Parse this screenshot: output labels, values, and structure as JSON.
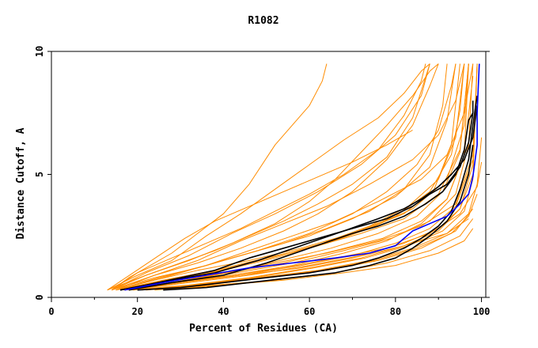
{
  "chart_data": {
    "type": "line",
    "title": "R1082",
    "xlabel": "Percent of Residues (CA)",
    "ylabel": "Distance Cutoff, A",
    "xlim": [
      0,
      101
    ],
    "ylim": [
      0,
      10
    ],
    "x_ticks": [
      0,
      20,
      40,
      60,
      80,
      100
    ],
    "y_ticks": [
      0,
      5,
      10
    ],
    "grid": false,
    "legend": "none",
    "colors": {
      "orange": "#ff8c00",
      "black": "#000000",
      "blue": "#0000ff"
    },
    "series": [
      {
        "color": "orange",
        "x": [
          14,
          18,
          22,
          28,
          34,
          40,
          46,
          52,
          56,
          60,
          63,
          64
        ],
        "y": [
          0.3,
          0.8,
          1.2,
          1.8,
          2.6,
          3.4,
          4.6,
          6.2,
          7.0,
          7.8,
          8.8,
          9.5
        ]
      },
      {
        "color": "orange",
        "x": [
          13,
          20,
          28,
          36,
          44,
          52,
          60,
          68,
          76,
          82,
          86,
          88
        ],
        "y": [
          0.3,
          0.9,
          1.5,
          2.5,
          3.4,
          4.4,
          5.4,
          6.4,
          7.3,
          8.3,
          9.2,
          9.5
        ]
      },
      {
        "color": "orange",
        "x": [
          14,
          22,
          32,
          42,
          52,
          62,
          72,
          80,
          86,
          88
        ],
        "y": [
          0.3,
          1.0,
          1.7,
          2.6,
          3.4,
          4.3,
          5.4,
          6.6,
          8.2,
          9.5
        ]
      },
      {
        "color": "orange",
        "x": [
          15,
          24,
          34,
          44,
          54,
          64,
          74,
          84,
          90,
          94,
          96
        ],
        "y": [
          0.3,
          0.9,
          1.5,
          2.3,
          3.0,
          3.7,
          4.6,
          5.6,
          6.6,
          8.0,
          9.5
        ]
      },
      {
        "color": "orange",
        "x": [
          15,
          26,
          36,
          46,
          56,
          66,
          76,
          86,
          92,
          96,
          98
        ],
        "y": [
          0.3,
          0.8,
          1.3,
          1.9,
          2.5,
          3.1,
          3.9,
          4.8,
          5.8,
          7.5,
          9.5
        ]
      },
      {
        "color": "orange",
        "x": [
          16,
          26,
          38,
          50,
          62,
          72,
          82,
          90,
          95,
          97
        ],
        "y": [
          0.3,
          0.7,
          1.1,
          1.6,
          2.1,
          2.6,
          3.2,
          4.2,
          6.0,
          9.5
        ]
      },
      {
        "color": "orange",
        "x": [
          16,
          28,
          40,
          52,
          64,
          76,
          86,
          94,
          98,
          99
        ],
        "y": [
          0.3,
          0.6,
          1.0,
          1.4,
          1.8,
          2.3,
          2.9,
          3.8,
          5.8,
          9.5
        ]
      },
      {
        "color": "orange",
        "x": [
          17,
          30,
          42,
          54,
          66,
          78,
          88,
          95,
          99,
          100
        ],
        "y": [
          0.3,
          0.6,
          0.9,
          1.2,
          1.6,
          2.0,
          2.6,
          3.4,
          4.5,
          5.5
        ]
      },
      {
        "color": "orange",
        "x": [
          18,
          30,
          44,
          58,
          70,
          82,
          92,
          97
        ],
        "y": [
          0.3,
          0.6,
          0.9,
          1.2,
          1.6,
          2.1,
          2.6,
          3.2
        ]
      },
      {
        "color": "orange",
        "x": [
          14,
          24,
          34,
          44,
          54,
          62,
          70,
          78,
          84,
          88,
          90
        ],
        "y": [
          0.3,
          0.9,
          1.4,
          2.0,
          2.7,
          3.4,
          4.3,
          5.6,
          7.0,
          8.6,
          9.5
        ]
      },
      {
        "color": "orange",
        "x": [
          15,
          25,
          36,
          48,
          60,
          70,
          80,
          88,
          92,
          94
        ],
        "y": [
          0.3,
          0.8,
          1.3,
          1.9,
          2.5,
          3.2,
          4.1,
          5.3,
          7.2,
          9.5
        ]
      },
      {
        "color": "orange",
        "x": [
          16,
          28,
          40,
          52,
          64,
          74,
          84,
          92,
          96,
          97
        ],
        "y": [
          0.3,
          0.7,
          1.1,
          1.6,
          2.2,
          2.8,
          3.6,
          4.8,
          7.0,
          9.5
        ]
      },
      {
        "color": "orange",
        "x": [
          17,
          30,
          43,
          56,
          68,
          79,
          88,
          94,
          97,
          98
        ],
        "y": [
          0.3,
          0.6,
          1.0,
          1.4,
          1.9,
          2.4,
          3.1,
          4.2,
          6.2,
          9.5
        ]
      },
      {
        "color": "orange",
        "x": [
          18,
          32,
          46,
          60,
          72,
          82,
          90,
          95,
          98,
          99
        ],
        "y": [
          0.3,
          0.6,
          0.9,
          1.3,
          1.7,
          2.2,
          2.8,
          3.6,
          5.4,
          9.5
        ]
      },
      {
        "color": "orange",
        "x": [
          20,
          34,
          48,
          62,
          74,
          84,
          92,
          97,
          99,
          100
        ],
        "y": [
          0.3,
          0.5,
          0.8,
          1.1,
          1.5,
          2.0,
          2.6,
          3.4,
          4.6,
          6.5
        ]
      },
      {
        "color": "orange",
        "x": [
          22,
          36,
          50,
          64,
          76,
          86,
          94,
          98
        ],
        "y": [
          0.3,
          0.5,
          0.8,
          1.1,
          1.5,
          2.0,
          2.7,
          3.6
        ]
      },
      {
        "color": "orange",
        "x": [
          13,
          22,
          30,
          38,
          46,
          54,
          62,
          70,
          78,
          84,
          88
        ],
        "y": [
          0.3,
          0.9,
          1.4,
          1.9,
          2.5,
          3.1,
          3.8,
          4.6,
          5.7,
          7.3,
          9.5
        ]
      },
      {
        "color": "orange",
        "x": [
          14,
          24,
          34,
          44,
          54,
          64,
          74,
          82,
          88,
          91,
          92
        ],
        "y": [
          0.3,
          0.8,
          1.2,
          1.7,
          2.2,
          2.8,
          3.5,
          4.4,
          5.8,
          7.8,
          9.5
        ]
      },
      {
        "color": "orange",
        "x": [
          15,
          26,
          38,
          50,
          62,
          72,
          82,
          89,
          93,
          95
        ],
        "y": [
          0.3,
          0.7,
          1.1,
          1.6,
          2.1,
          2.7,
          3.4,
          4.4,
          6.2,
          9.5
        ]
      },
      {
        "color": "orange",
        "x": [
          16,
          28,
          41,
          54,
          66,
          77,
          86,
          92,
          96,
          97
        ],
        "y": [
          0.3,
          0.6,
          1.0,
          1.4,
          1.9,
          2.4,
          3.1,
          4.0,
          5.8,
          9.5
        ]
      },
      {
        "color": "orange",
        "x": [
          17,
          30,
          44,
          58,
          70,
          80,
          88,
          94,
          98
        ],
        "y": [
          0.3,
          0.6,
          0.9,
          1.3,
          1.7,
          2.2,
          2.8,
          3.7,
          5.6
        ]
      },
      {
        "color": "orange",
        "x": [
          19,
          33,
          47,
          61,
          73,
          83,
          91,
          96,
          98,
          99
        ],
        "y": [
          0.3,
          0.5,
          0.8,
          1.2,
          1.6,
          2.1,
          2.7,
          3.5,
          4.8,
          9.5
        ]
      },
      {
        "color": "orange",
        "x": [
          14,
          20,
          28,
          36,
          44,
          52,
          60,
          68,
          76,
          82,
          86,
          87
        ],
        "y": [
          0.3,
          1.0,
          1.6,
          2.2,
          2.8,
          3.5,
          4.2,
          5.0,
          6.0,
          7.4,
          8.8,
          9.5
        ]
      },
      {
        "color": "orange",
        "x": [
          15,
          24,
          34,
          46,
          58,
          70,
          80,
          88,
          93,
          95,
          96
        ],
        "y": [
          0.3,
          0.7,
          1.1,
          1.5,
          2.0,
          2.6,
          3.3,
          4.3,
          5.8,
          7.6,
          9.5
        ]
      },
      {
        "color": "orange",
        "x": [
          16,
          28,
          42,
          56,
          68,
          78,
          86,
          92,
          96,
          98
        ],
        "y": [
          0.3,
          0.6,
          0.9,
          1.3,
          1.8,
          2.3,
          3.0,
          4.0,
          5.8,
          9.0
        ]
      },
      {
        "color": "orange",
        "x": [
          18,
          32,
          46,
          60,
          72,
          82,
          90,
          95,
          98
        ],
        "y": [
          0.3,
          0.5,
          0.8,
          1.2,
          1.6,
          2.1,
          2.7,
          3.6,
          5.0
        ]
      },
      {
        "color": "orange",
        "x": [
          21,
          35,
          49,
          63,
          75,
          85,
          93,
          97,
          99
        ],
        "y": [
          0.3,
          0.5,
          0.8,
          1.1,
          1.5,
          2.0,
          2.6,
          3.3,
          4.2
        ]
      },
      {
        "color": "orange",
        "x": [
          24,
          38,
          52,
          66,
          78,
          88,
          95,
          98
        ],
        "y": [
          0.3,
          0.5,
          0.7,
          1.0,
          1.4,
          1.9,
          2.5,
          3.2
        ]
      },
      {
        "color": "orange",
        "x": [
          26,
          40,
          54,
          68,
          80,
          90,
          96,
          98
        ],
        "y": [
          0.3,
          0.5,
          0.7,
          1.0,
          1.3,
          1.8,
          2.3,
          2.8
        ]
      },
      {
        "color": "orange",
        "x": [
          14,
          22,
          32,
          42,
          52,
          60,
          66,
          72,
          78,
          84,
          88,
          90
        ],
        "y": [
          0.3,
          0.9,
          1.5,
          2.2,
          3.0,
          3.9,
          4.8,
          5.9,
          7.0,
          8.2,
          9.2,
          9.5
        ]
      },
      {
        "color": "orange",
        "x": [
          15,
          25,
          36,
          48,
          60,
          70,
          78,
          85,
          90,
          93,
          94
        ],
        "y": [
          0.3,
          0.8,
          1.3,
          1.9,
          2.6,
          3.4,
          4.3,
          5.4,
          6.8,
          8.6,
          9.5
        ]
      },
      {
        "color": "orange",
        "x": [
          16,
          27,
          39,
          51,
          63,
          74,
          83,
          90,
          94,
          96
        ],
        "y": [
          0.3,
          0.7,
          1.1,
          1.6,
          2.2,
          2.9,
          3.7,
          4.8,
          6.5,
          9.5
        ]
      },
      {
        "color": "orange",
        "x": [
          17,
          29,
          41,
          53,
          65,
          76,
          85,
          91,
          95,
          97
        ],
        "y": [
          0.3,
          0.6,
          1.0,
          1.5,
          2.0,
          2.6,
          3.3,
          4.3,
          5.9,
          9.5
        ]
      },
      {
        "color": "orange",
        "x": [
          13,
          19,
          25,
          31,
          38,
          46,
          54,
          62,
          70,
          78,
          84
        ],
        "y": [
          0.3,
          1.0,
          1.7,
          2.4,
          3.1,
          3.7,
          4.3,
          4.9,
          5.5,
          6.2,
          6.8
        ]
      },
      {
        "color": "black",
        "x": [
          16,
          22,
          30,
          38,
          46,
          54,
          62,
          70,
          78,
          84,
          88,
          92,
          95,
          97,
          98,
          98
        ],
        "y": [
          0.3,
          0.5,
          0.8,
          1.1,
          1.6,
          2.0,
          2.4,
          2.8,
          3.2,
          3.7,
          4.2,
          4.6,
          5.3,
          6.3,
          7.5,
          8.0
        ]
      },
      {
        "color": "black",
        "x": [
          18,
          28,
          40,
          50,
          60,
          70,
          76,
          82,
          87,
          91,
          94,
          96,
          97,
          98
        ],
        "y": [
          0.3,
          0.6,
          0.9,
          1.4,
          2.0,
          2.6,
          2.9,
          3.3,
          3.8,
          4.3,
          5.0,
          6.0,
          7.2,
          7.5
        ]
      },
      {
        "color": "black",
        "x": [
          20,
          30,
          40,
          50,
          60,
          70,
          76,
          82,
          86,
          90,
          93,
          95,
          97,
          98,
          99
        ],
        "y": [
          0.3,
          0.4,
          0.6,
          0.8,
          1.0,
          1.3,
          1.6,
          2.0,
          2.4,
          2.9,
          3.5,
          4.4,
          5.6,
          7.0,
          8.2
        ]
      },
      {
        "color": "black",
        "x": [
          26,
          36,
          46,
          56,
          66,
          74,
          80,
          84,
          88,
          92,
          95,
          97,
          98
        ],
        "y": [
          0.3,
          0.4,
          0.6,
          0.8,
          1.0,
          1.3,
          1.6,
          2.0,
          2.5,
          3.1,
          3.9,
          5.0,
          6.2
        ]
      },
      {
        "color": "black",
        "x": [
          16,
          28,
          38,
          48,
          58,
          68,
          76,
          82,
          86,
          90,
          93,
          96,
          98,
          99
        ],
        "y": [
          0.3,
          0.7,
          1.0,
          1.5,
          2.1,
          2.7,
          3.2,
          3.6,
          4.0,
          4.5,
          5.0,
          5.6,
          6.5,
          7.8
        ]
      },
      {
        "color": "blue",
        "x": [
          17,
          26,
          36,
          46,
          56,
          66,
          74,
          80,
          84,
          88,
          92,
          95,
          97,
          98,
          99,
          99,
          99.5
        ],
        "y": [
          0.3,
          0.6,
          0.9,
          1.2,
          1.4,
          1.6,
          1.8,
          2.1,
          2.7,
          3.0,
          3.3,
          3.8,
          4.2,
          4.9,
          6.2,
          7.5,
          9.5
        ]
      }
    ]
  }
}
